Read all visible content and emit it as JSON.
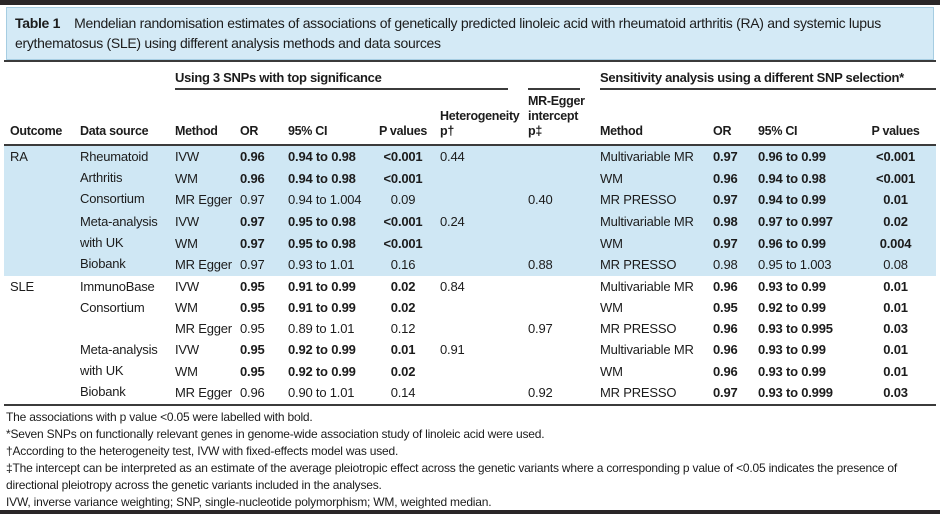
{
  "colors": {
    "row_band": "#cfe7f4",
    "title_band": "#d4eaf6",
    "rule": "#3b3b3b",
    "heavy_rule": "#2a2627"
  },
  "title": {
    "label": "Table 1",
    "text": "Mendelian randomisation estimates of associations of genetically predicted linoleic acid with rheumatoid arthritis (RA) and systemic lupus erythematosus (SLE) using different analysis methods and data sources"
  },
  "groups": {
    "left": "Using 3 SNPs with top significance",
    "right": "Sensitivity analysis using a different SNP selection*"
  },
  "columns": [
    "Outcome",
    "Data source",
    "Method",
    "OR",
    "95% CI",
    "P values",
    "Heterogeneity p†",
    "MR-Egger intercept p‡",
    "Method",
    "OR",
    "95% CI",
    "P values"
  ],
  "outcomes": [
    {
      "label": "RA",
      "shaded": true,
      "sources": [
        {
          "label": "Rheumatoid Arthritis Consortium",
          "rows": [
            {
              "method": "IVW",
              "or": "0.96",
              "ci": "0.94 to 0.98",
              "p": "<0.001",
              "het": "0.44",
              "egger": "",
              "method2": "Multivariable MR",
              "or2": "0.97",
              "ci2": "0.96 to 0.99",
              "p2": "<0.001",
              "bold_left": true,
              "bold_right": true
            },
            {
              "method": "WM",
              "or": "0.96",
              "ci": "0.94 to 0.98",
              "p": "<0.001",
              "het": "",
              "egger": "",
              "method2": "WM",
              "or2": "0.96",
              "ci2": "0.94 to 0.98",
              "p2": "<0.001",
              "bold_left": true,
              "bold_right": true
            },
            {
              "method": "MR Egger",
              "or": "0.97",
              "ci": "0.94 to 1.004",
              "p": "0.09",
              "het": "",
              "egger": "0.40",
              "method2": "MR PRESSO",
              "or2": "0.97",
              "ci2": "0.94 to 0.99",
              "p2": "0.01",
              "bold_left": false,
              "bold_right": true
            }
          ]
        },
        {
          "label": "Meta-analysis with UK Biobank",
          "rows": [
            {
              "method": "IVW",
              "or": "0.97",
              "ci": "0.95 to 0.98",
              "p": "<0.001",
              "het": "0.24",
              "egger": "",
              "method2": "Multivariable MR",
              "or2": "0.98",
              "ci2": "0.97 to 0.997",
              "p2": "0.02",
              "bold_left": true,
              "bold_right": true
            },
            {
              "method": "WM",
              "or": "0.97",
              "ci": "0.95 to 0.98",
              "p": "<0.001",
              "het": "",
              "egger": "",
              "method2": "WM",
              "or2": "0.97",
              "ci2": "0.96 to 0.99",
              "p2": "0.004",
              "bold_left": true,
              "bold_right": true
            },
            {
              "method": "MR Egger",
              "or": "0.97",
              "ci": "0.93 to 1.01",
              "p": "0.16",
              "het": "",
              "egger": "0.88",
              "method2": "MR PRESSO",
              "or2": "0.98",
              "ci2": "0.95 to 1.003",
              "p2": "0.08",
              "bold_left": false,
              "bold_right": false
            }
          ]
        }
      ]
    },
    {
      "label": "SLE",
      "shaded": false,
      "sources": [
        {
          "label": "ImmunoBase Consortium",
          "rows": [
            {
              "method": "IVW",
              "or": "0.95",
              "ci": "0.91 to 0.99",
              "p": "0.02",
              "het": "0.84",
              "egger": "",
              "method2": "Multivariable MR",
              "or2": "0.96",
              "ci2": "0.93 to 0.99",
              "p2": "0.01",
              "bold_left": true,
              "bold_right": true
            },
            {
              "method": "WM",
              "or": "0.95",
              "ci": "0.91 to 0.99",
              "p": "0.02",
              "het": "",
              "egger": "",
              "method2": "WM",
              "or2": "0.95",
              "ci2": "0.92 to 0.99",
              "p2": "0.01",
              "bold_left": true,
              "bold_right": true
            },
            {
              "method": "MR Egger",
              "or": "0.95",
              "ci": "0.89 to 1.01",
              "p": "0.12",
              "het": "",
              "egger": "0.97",
              "method2": "MR PRESSO",
              "or2": "0.96",
              "ci2": "0.93 to 0.995",
              "p2": "0.03",
              "bold_left": false,
              "bold_right": true
            }
          ]
        },
        {
          "label": "Meta-analysis with UK Biobank",
          "rows": [
            {
              "method": "IVW",
              "or": "0.95",
              "ci": "0.92 to 0.99",
              "p": "0.01",
              "het": "0.91",
              "egger": "",
              "method2": "Multivariable MR",
              "or2": "0.96",
              "ci2": "0.93 to 0.99",
              "p2": "0.01",
              "bold_left": true,
              "bold_right": true
            },
            {
              "method": "WM",
              "or": "0.95",
              "ci": "0.92 to 0.99",
              "p": "0.02",
              "het": "",
              "egger": "",
              "method2": "WM",
              "or2": "0.96",
              "ci2": "0.93 to 0.99",
              "p2": "0.01",
              "bold_left": true,
              "bold_right": true
            },
            {
              "method": "MR Egger",
              "or": "0.96",
              "ci": "0.90 to 1.01",
              "p": "0.14",
              "het": "",
              "egger": "0.92",
              "method2": "MR PRESSO",
              "or2": "0.97",
              "ci2": "0.93 to 0.999",
              "p2": "0.03",
              "bold_left": false,
              "bold_right": true
            }
          ]
        }
      ]
    }
  ],
  "footnotes": [
    "The associations with p value <0.05 were labelled with bold.",
    "*Seven SNPs on functionally relevant genes in genome-wide association study of linoleic acid were used.",
    "†According to the heterogeneity test, IVW with fixed-effects model was used.",
    "‡The intercept can be interpreted as an estimate of the average pleiotropic effect across the genetic variants where a corresponding p value of <0.05 indicates the presence of directional pleiotropy across the genetic variants included in the analyses.",
    "IVW, inverse variance weighting; SNP, single-nucleotide polymorphism; WM, weighted median."
  ]
}
